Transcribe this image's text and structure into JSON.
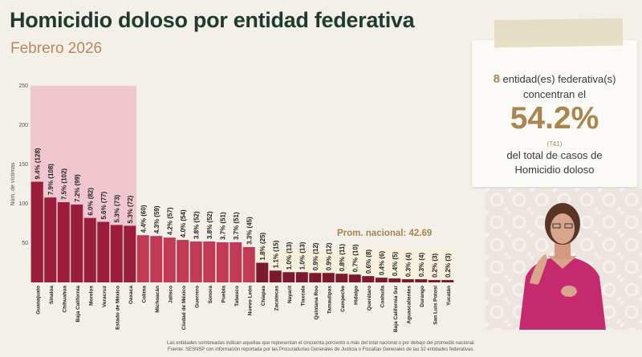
{
  "header": {
    "title": "Homicidio doloso por entidad federativa",
    "subtitle": "Febrero 2026"
  },
  "chart_data": {
    "type": "bar",
    "ylabel": "Núm. de víctimas",
    "ylim": [
      0,
      250
    ],
    "yticks": [
      50,
      100,
      150,
      200,
      250
    ],
    "categories": [
      "Guanajuato",
      "Sinaloa",
      "Chihuahua",
      "Baja California",
      "Morelos",
      "Veracruz",
      "Estado de México",
      "Oaxaca",
      "Colima",
      "Michoacán",
      "Jalisco",
      "Ciudad de México",
      "Guerrero",
      "Sonora",
      "Puebla",
      "Tabasco",
      "Nuevo León",
      "Chiapas",
      "Zacatecas",
      "Nayarit",
      "Tlaxcala",
      "Quintana Roo",
      "Tamaulipas",
      "Campeche",
      "Hidalgo",
      "Querétaro",
      "Coahuila",
      "Baja California Sur",
      "Aguascalientes",
      "Durango",
      "San Luis Potosí",
      "Yucatán"
    ],
    "values": [
      128,
      108,
      102,
      99,
      82,
      77,
      73,
      72,
      60,
      59,
      57,
      54,
      52,
      52,
      51,
      51,
      45,
      25,
      15,
      13,
      13,
      12,
      12,
      11,
      10,
      8,
      6,
      5,
      4,
      4,
      3,
      3
    ],
    "labels": [
      "9.4% (128)",
      "7.9% (108)",
      "7.5% (102)",
      "7.2% (99)",
      "6.0% (82)",
      "5.6% (77)",
      "5.3% (73)",
      "5.3% (72)",
      "4.4% (60)",
      "4.3% (59)",
      "4.2% (57)",
      "4.0% (54)",
      "3.8% (52)",
      "3.8% (52)",
      "3.7% (51)",
      "3.7% (51)",
      "3.3% (45)",
      "1.8% (25)",
      "1.1% (15)",
      "1.0% (13)",
      "1.0% (13)",
      "0.9% (12)",
      "0.9% (12)",
      "0.8% (11)",
      "0.7% (10)",
      "0.6% (8)",
      "0.4% (6)",
      "0.4% (5)",
      "0.3% (4)",
      "0.3% (4)",
      "0.2% (3)",
      "0.2% (3)"
    ],
    "average": 42.69,
    "average_label": "Prom. nacional: 42.69",
    "highlighted_count": 8,
    "colors": {
      "highlight_bar": "#9a1e3c",
      "above_avg_bar": "#c03a55",
      "below_avg_bar": "#7a1930",
      "highlight_bg": "#f0c6cf",
      "below_bg": "#f7f0dc"
    }
  },
  "notes": {
    "line1": "Las entidades sombreadas indican aquellas que representan el cincuenta porciento o más del total nacional o por debajo del promedio nacional.",
    "line2": "Fuente: SESNSP con información reportada por las Procuradurías Generales de Justicia o Fiscalías Generales de las 32 entidades federativas."
  },
  "card": {
    "count": "8",
    "line1_rest": "entidad(es) federativa(s)",
    "line2": "concentran el",
    "percent": "54.2%",
    "cases": "(741)",
    "line3": "del total de casos de",
    "line4": "Homicidio doloso"
  }
}
